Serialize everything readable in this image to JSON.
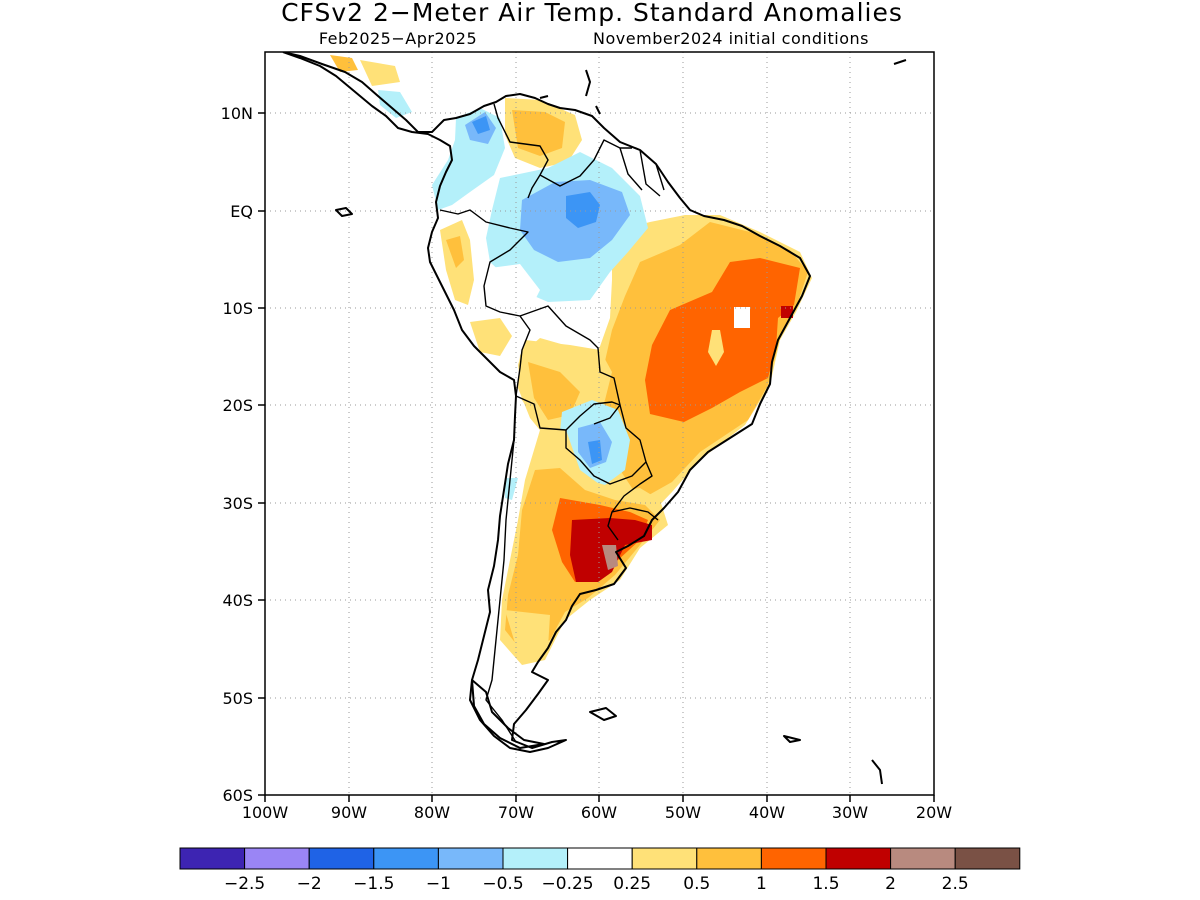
{
  "title": "CFSv2 2−Meter Air Temp. Standard Anomalies",
  "subtitle_left": "Feb2025−Apr2025",
  "subtitle_right": "November2024 initial conditions",
  "y_ticks": [
    "10N",
    "EQ",
    "10S",
    "20S",
    "30S",
    "40S",
    "50S",
    "60S"
  ],
  "x_ticks": [
    "100W",
    "90W",
    "80W",
    "70W",
    "60W",
    "50W",
    "40W",
    "30W",
    "20W"
  ],
  "colorbar": {
    "colors": [
      "#3d24b2",
      "#9a85f5",
      "#1f63e6",
      "#3c95f5",
      "#78b8fa",
      "#b4f0fa",
      "#ffffff",
      "#ffe178",
      "#ffc03c",
      "#ff6400",
      "#c00000",
      "#b88a7f",
      "#7a5145"
    ],
    "labels": [
      "−2.5",
      "−2",
      "−1.5",
      "−1",
      "−0.5",
      "−0.25",
      "0.25",
      "0.5",
      "1",
      "1.5",
      "2",
      "2.5"
    ]
  },
  "chart_data": {
    "type": "map",
    "projection": "cylindrical",
    "lon_range": [
      -100,
      -20
    ],
    "lat_range": [
      -60,
      15
    ],
    "variable": "2-meter air temperature standard anomaly"
  }
}
